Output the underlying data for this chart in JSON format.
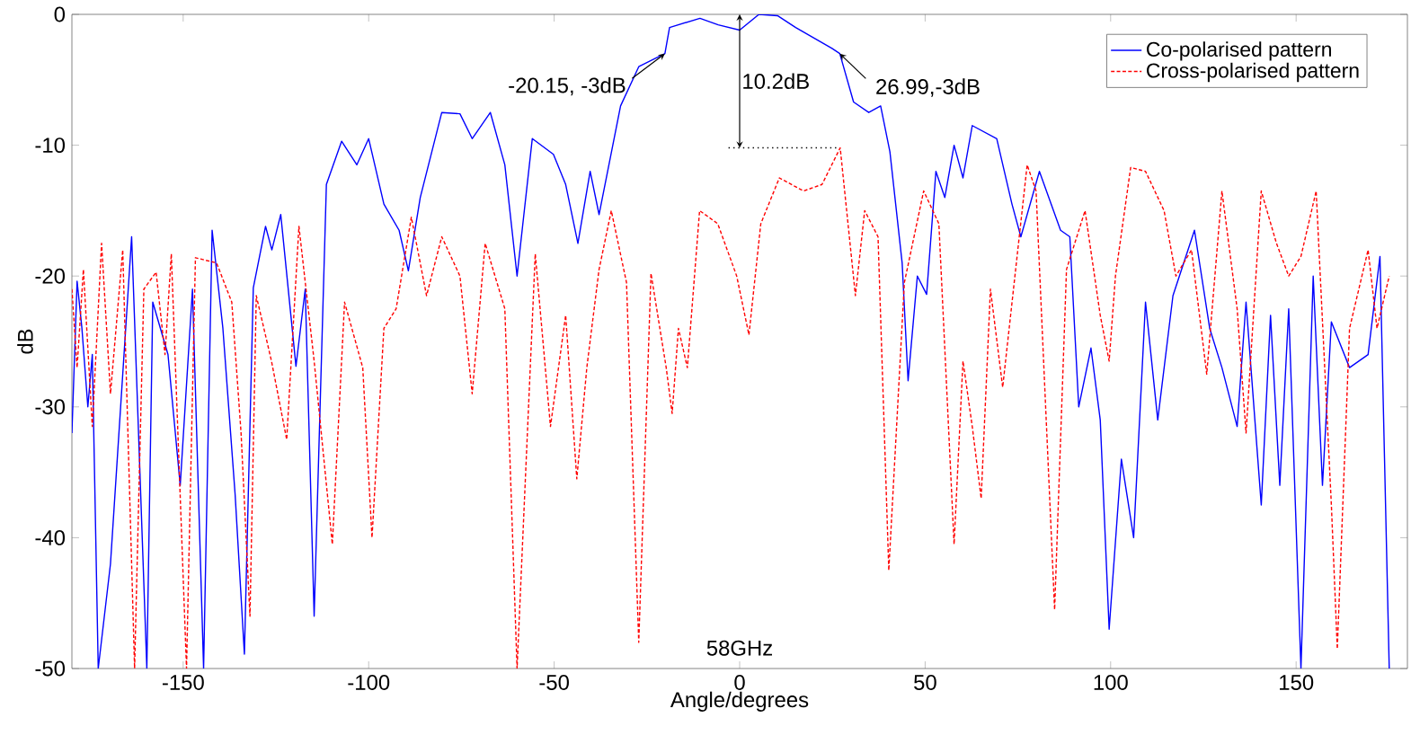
{
  "chart_data": {
    "type": "line",
    "xlabel": "Angle/degrees",
    "ylabel": "dB",
    "xlim": [
      -180,
      180
    ],
    "xticks": [
      -150,
      -100,
      -50,
      0,
      50,
      100,
      150
    ],
    "ylim": [
      -50,
      0
    ],
    "yticks": [
      -50,
      -40,
      -30,
      -20,
      -10,
      0
    ],
    "legend": "top right",
    "marker": "none",
    "annotations": [
      {
        "text": "-20.15, -3dB",
        "x": -20.15,
        "y": -3
      },
      {
        "text": "26.99,-3dB",
        "x": 26.99,
        "y": -3
      },
      {
        "text": "10.2dB",
        "x": 0,
        "y": -10.2
      },
      "58GHz"
    ],
    "series": [
      {
        "name": "Co-polarised pattern",
        "color": "#0000ff",
        "line_style": "solid",
        "x": [
          -180,
          -178.6,
          -177.3,
          -175.7,
          -174.5,
          -172.9,
          -169.6,
          -163.9,
          -159.8,
          -158.2,
          -154.1,
          -150.8,
          -147.5,
          -144.5,
          -142.2,
          -139.3,
          -136,
          -133.5,
          -131.1,
          -127.8,
          -126.1,
          -123.7,
          -119.6,
          -117.1,
          -114.7,
          -111.4,
          -107.3,
          -103.2,
          -100,
          -95.9,
          -91.8,
          -89.3,
          -86.1,
          -80.3,
          -75.4,
          -72.1,
          -67.2,
          -63.3,
          -60,
          -55.9,
          -50.2,
          -46.9,
          -43.6,
          -40.3,
          -37.9,
          -32.1,
          -27.2,
          -20.15,
          -18.9,
          -10.7,
          -5.8,
          0,
          5.2,
          10.2,
          15.1,
          20,
          24.9,
          26.99,
          30.7,
          34.8,
          38,
          40.5,
          43.8,
          45.4,
          47.9,
          50.4,
          52.9,
          55.3,
          57.8,
          60.2,
          62.7,
          69.3,
          73.4,
          75.8,
          80.8,
          86.5,
          89,
          91.4,
          94.7,
          97.2,
          99.6,
          102.9,
          106.2,
          109.4,
          112.7,
          116.8,
          122.6,
          126.7,
          130,
          134.1,
          136.5,
          140.6,
          143.1,
          145.6,
          148,
          151.3,
          154.6,
          157.1,
          159.5,
          164.4,
          169.4,
          172.6,
          175.1
        ],
        "values": [
          -32,
          -20.4,
          -24,
          -30,
          -26,
          -50,
          -42,
          -17,
          -50,
          -22,
          -26,
          -36,
          -21,
          -50,
          -16.5,
          -24,
          -36.7,
          -48.9,
          -20.9,
          -16.2,
          -18,
          -15.3,
          -26.9,
          -21,
          -46,
          -13,
          -9.7,
          -11.5,
          -9.5,
          -14.5,
          -16.5,
          -19.6,
          -14,
          -7.5,
          -7.6,
          -9.5,
          -7.5,
          -11.5,
          -20,
          -9.5,
          -10.7,
          -13,
          -17.5,
          -12,
          -15.3,
          -7,
          -4,
          -3,
          -1,
          -0.3,
          -0.8,
          -1.2,
          0,
          -0.1,
          -1,
          -1.8,
          -2.6,
          -3,
          -6.7,
          -7.5,
          -7,
          -10.5,
          -19,
          -28,
          -20,
          -21.4,
          -12,
          -14,
          -10,
          -12.5,
          -8.5,
          -9.5,
          -14.5,
          -17,
          -12,
          -16.5,
          -17,
          -30,
          -25.5,
          -31,
          -47,
          -34,
          -40,
          -22,
          -31,
          -21.5,
          -16.5,
          -24,
          -27,
          -31.5,
          -22,
          -37.5,
          -23,
          -36,
          -22.5,
          -50,
          -20,
          -36,
          -23.5,
          -27,
          -26,
          -18.5,
          -50
        ]
      },
      {
        "name": "Cross-polarised pattern",
        "color": "#ff0000",
        "line_style": "dashed",
        "x": [
          -180,
          -178.6,
          -176.9,
          -174.5,
          -172,
          -169.6,
          -166.3,
          -163.1,
          -160.6,
          -157.3,
          -154.9,
          -153.2,
          -149.1,
          -146.7,
          -141,
          -136.9,
          -134.4,
          -132,
          -130.3,
          -126.2,
          -122.1,
          -118.8,
          -114.7,
          -109.8,
          -106.5,
          -101.6,
          -99.1,
          -95.9,
          -92.6,
          -88.5,
          -84.4,
          -80.3,
          -75.4,
          -72.1,
          -68.6,
          -63.3,
          -60,
          -55.1,
          -51,
          -46.9,
          -43.9,
          -41.2,
          -37.9,
          -34.6,
          -30.5,
          -27.2,
          -23.9,
          -19.8,
          -18.2,
          -16.5,
          -14.1,
          -10.8,
          -5.9,
          -0.8,
          2.5,
          5.7,
          10.7,
          17.2,
          22.2,
          27.1,
          31.2,
          33.7,
          37.3,
          40.2,
          44.4,
          49.6,
          53.7,
          57.8,
          60.2,
          62.7,
          65.1,
          67.6,
          70.9,
          77.5,
          79.9,
          84.9,
          88.1,
          93.1,
          97.2,
          99.6,
          101.3,
          105.4,
          109.4,
          114.4,
          117.6,
          121.8,
          125.9,
          130,
          134.1,
          136.5,
          140.6,
          144.7,
          148,
          151.3,
          155.4,
          159.5,
          161.1,
          164.4,
          169.4,
          171.8,
          175.1
        ],
        "values": [
          -21,
          -27,
          -19.5,
          -31.5,
          -17.5,
          -29,
          -18,
          -50,
          -21,
          -19.7,
          -26,
          -18.3,
          -50,
          -18.6,
          -19,
          -22,
          -32,
          -46,
          -21.5,
          -26.5,
          -32.5,
          -16.2,
          -26.5,
          -40.5,
          -22,
          -27,
          -40,
          -24,
          -22.5,
          -15.5,
          -21.5,
          -17,
          -20,
          -29,
          -17.5,
          -22.5,
          -50,
          -18.3,
          -31.5,
          -23,
          -35.5,
          -27,
          -19.5,
          -15,
          -20.5,
          -48,
          -19.8,
          -27,
          -30.5,
          -24,
          -27,
          -15,
          -16,
          -20,
          -24.5,
          -16,
          -12.5,
          -13.5,
          -13,
          -10.2,
          -21.5,
          -15,
          -17,
          -42.5,
          -20.5,
          -13.5,
          -16,
          -40.5,
          -26.5,
          -31.5,
          -37,
          -21,
          -28.5,
          -11.5,
          -13.5,
          -45.5,
          -19.5,
          -15,
          -23,
          -26.5,
          -20,
          -11.7,
          -12,
          -15,
          -20,
          -18,
          -27.5,
          -13.5,
          -22.5,
          -32,
          -13.5,
          -17.5,
          -20,
          -18.5,
          -13.5,
          -37.5,
          -48.5,
          -24,
          -18,
          -24,
          -20
        ]
      },
      {
        "color": "#000000",
        "line_style": "dotted",
        "x": [
          -3,
          27
        ],
        "values": [
          -10.2,
          -10.2
        ]
      }
    ]
  }
}
